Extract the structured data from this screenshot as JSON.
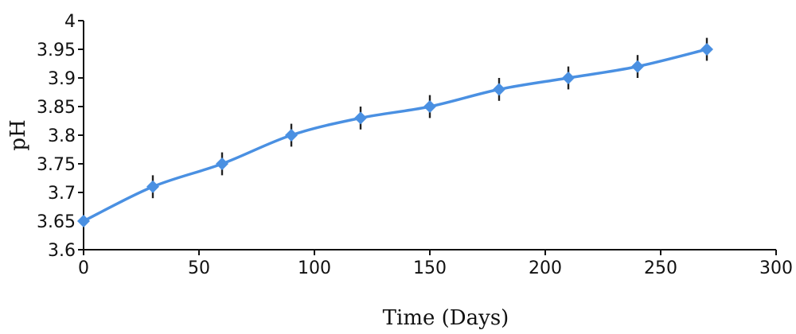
{
  "chart_data": {
    "type": "line",
    "title": "",
    "xlabel": "Time (Days)",
    "ylabel": "pH",
    "xlim": [
      0,
      300
    ],
    "ylim": [
      3.6,
      4
    ],
    "xticks": [
      "0",
      "50",
      "100",
      "150",
      "200",
      "250",
      "300"
    ],
    "yticks": [
      "3.6",
      "3.65",
      "3.7",
      "3.75",
      "3.8",
      "3.85",
      "3.9",
      "3.95",
      "4"
    ],
    "grid": false,
    "legend": "none",
    "series": [
      {
        "color": "#4a90e2",
        "marker": "diamond",
        "x": [
          0,
          30,
          60,
          90,
          120,
          150,
          180,
          210,
          240,
          270
        ],
        "y": [
          3.65,
          3.71,
          3.75,
          3.8,
          3.83,
          3.85,
          3.88,
          3.9,
          3.92,
          3.95
        ],
        "error": [
          0,
          0.02,
          0.02,
          0.02,
          0.02,
          0.02,
          0.02,
          0.02,
          0.02,
          0.02
        ]
      }
    ]
  }
}
